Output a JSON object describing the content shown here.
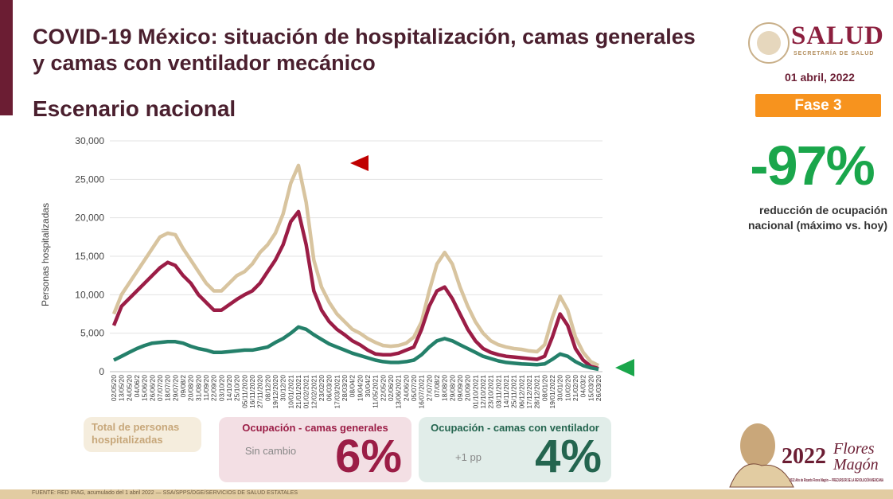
{
  "header": {
    "title": "COVID-19 México: situación de hospitalización, camas generales y camas con ventilador mecánico",
    "subtitle": "Escenario nacional"
  },
  "logo": {
    "name": "SALUD",
    "tagline": "SECRETARÍA DE SALUD"
  },
  "date": "01 abril, 2022",
  "phase": "Fase 3",
  "kpi": {
    "value": "-97%",
    "label": "reducción de ocupación nacional (máximo vs. hoy)",
    "color": "#1aa64b"
  },
  "legend": {
    "total": {
      "label": "Total de personas hospitalizadas",
      "color": "#d8c49f"
    },
    "general": {
      "title": "Ocupación - camas generales",
      "change": "Sin cambio",
      "value": "6%",
      "color": "#9b1d46"
    },
    "ventilator": {
      "title": "Ocupación - camas con ventilador",
      "change": "+1 pp",
      "value": "4%",
      "color": "#24654f"
    }
  },
  "footer": "FUENTE: RED IRAG, acumulado del 1 abril 2022 — SSA/SPPS/DGE/SERVICIOS DE SALUD ESTATALES",
  "badge": {
    "text": "2022 Año de Ricardo Flores Magón — PRECURSOR DE LA REVOLUCIÓN MEXICANA"
  },
  "chart_data": {
    "type": "line",
    "ylabel": "Personas hospitalizadas",
    "ylim": [
      0,
      30000
    ],
    "yticks": [
      "0",
      "5,000",
      "10,000",
      "15,000",
      "20,000",
      "25,000",
      "30,000"
    ],
    "grid": true,
    "x": [
      "02/05/20",
      "13/05/20",
      "24/05/20",
      "04/06/2",
      "15/06/20",
      "26/06/20",
      "07/07/20",
      "18/07/20",
      "29/07/20",
      "09/08/2",
      "20/08/20",
      "31/08/20",
      "11/09/20",
      "22/09/20",
      "03/10/20",
      "14/10/20",
      "25/10/20",
      "05/11/2020",
      "16/11/2020",
      "27/11/2020",
      "08/12/20",
      "19/12/2020",
      "30/12/20",
      "10/01/2021",
      "21/01/2021",
      "01/02/2021",
      "12/02/2021",
      "23/02/20",
      "06/03/20",
      "17/03/2021",
      "28/03/20",
      "08/04/2",
      "19/04/20",
      "30/04/2",
      "11/05/2021",
      "22/05/20",
      "02/06/20",
      "13/06/2021",
      "24/06/20",
      "05/07/20",
      "16/07/2021",
      "27/07/20",
      "07/08/2",
      "18/08/20",
      "29/08/20",
      "09/09/20",
      "20/09/20",
      "01/10/2021",
      "12/10/2021",
      "23/10/2021",
      "03/11/2021",
      "14/11/2021",
      "25/11/2021",
      "06/12/2021",
      "17/12/2021",
      "28/12/2021",
      "08/01/20",
      "19/01/2022",
      "30/01/20",
      "10/02/20",
      "21/02/20",
      "04/03/2",
      "15/03/20",
      "26/03/20"
    ],
    "series": [
      {
        "key": "total",
        "color": "#d8c49f",
        "values": [
          7500,
          10000,
          11500,
          13000,
          14500,
          16000,
          17500,
          18000,
          17800,
          16000,
          14500,
          13000,
          11500,
          10500,
          10500,
          11500,
          12500,
          13000,
          14000,
          15500,
          16500,
          18000,
          20500,
          24500,
          26800,
          22000,
          14500,
          11000,
          9000,
          7500,
          6500,
          5500,
          5000,
          4300,
          3800,
          3400,
          3300,
          3400,
          3700,
          4500,
          6500,
          10500,
          14000,
          15500,
          14000,
          11000,
          8500,
          6500,
          5000,
          4000,
          3500,
          3200,
          3000,
          2900,
          2700,
          2600,
          3500,
          7000,
          9800,
          8000,
          4500,
          2500,
          1300,
          800
        ]
      },
      {
        "key": "general",
        "color": "#9b1d46",
        "values": [
          6000,
          8500,
          9500,
          10500,
          11500,
          12500,
          13500,
          14200,
          13800,
          12500,
          11500,
          10000,
          9000,
          8000,
          8000,
          8700,
          9400,
          10000,
          10500,
          11500,
          13000,
          14500,
          16500,
          19500,
          20800,
          16500,
          10500,
          8000,
          6500,
          5500,
          4800,
          4000,
          3500,
          2800,
          2300,
          2200,
          2200,
          2400,
          2800,
          3200,
          5500,
          8500,
          10500,
          11000,
          9500,
          7500,
          5500,
          4000,
          3000,
          2500,
          2200,
          2000,
          1900,
          1800,
          1700,
          1600,
          2000,
          4500,
          7500,
          6000,
          3000,
          1500,
          700,
          400
        ]
      },
      {
        "key": "ventilator",
        "color": "#24806a",
        "values": [
          1500,
          2000,
          2500,
          3000,
          3400,
          3700,
          3800,
          3900,
          3900,
          3700,
          3300,
          3000,
          2800,
          2500,
          2500,
          2600,
          2700,
          2800,
          2800,
          3000,
          3200,
          3800,
          4300,
          5000,
          5800,
          5500,
          4800,
          4200,
          3600,
          3200,
          2800,
          2400,
          2100,
          1800,
          1500,
          1300,
          1200,
          1200,
          1300,
          1500,
          2200,
          3200,
          4000,
          4300,
          4000,
          3500,
          3000,
          2500,
          2000,
          1700,
          1400,
          1200,
          1100,
          1000,
          950,
          900,
          1000,
          1600,
          2300,
          2000,
          1300,
          800,
          500,
          300
        ]
      }
    ],
    "markers": [
      {
        "color": "#c00000",
        "points": "left",
        "near": "total peak"
      },
      {
        "color": "#1aa64b",
        "points": "left",
        "near": "latest value"
      }
    ]
  }
}
